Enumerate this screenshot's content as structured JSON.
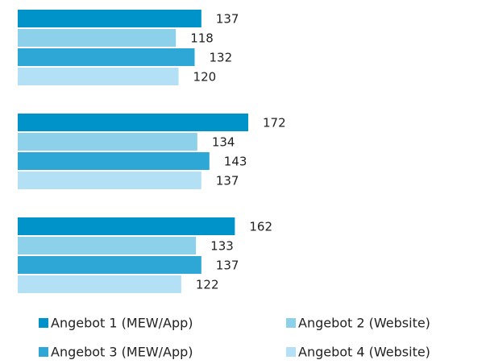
{
  "chart_data": {
    "type": "barh",
    "categories": [
      null,
      null,
      null
    ],
    "series": [
      {
        "name": "Angebot 1 (MEW/App)",
        "color": "#0093c9",
        "values": [
          137,
          172,
          162
        ]
      },
      {
        "name": "Angebot 2 (Website)",
        "color": "#8dd0ea",
        "values": [
          118,
          134,
          133
        ]
      },
      {
        "name": "Angebot 3 (MEW/App)",
        "color": "#2ea6d6",
        "values": [
          132,
          143,
          137
        ]
      },
      {
        "name": "Angebot 4 (Website)",
        "color": "#b3e0f4",
        "values": [
          120,
          137,
          122
        ]
      }
    ],
    "xlim": [
      0,
      350
    ]
  }
}
